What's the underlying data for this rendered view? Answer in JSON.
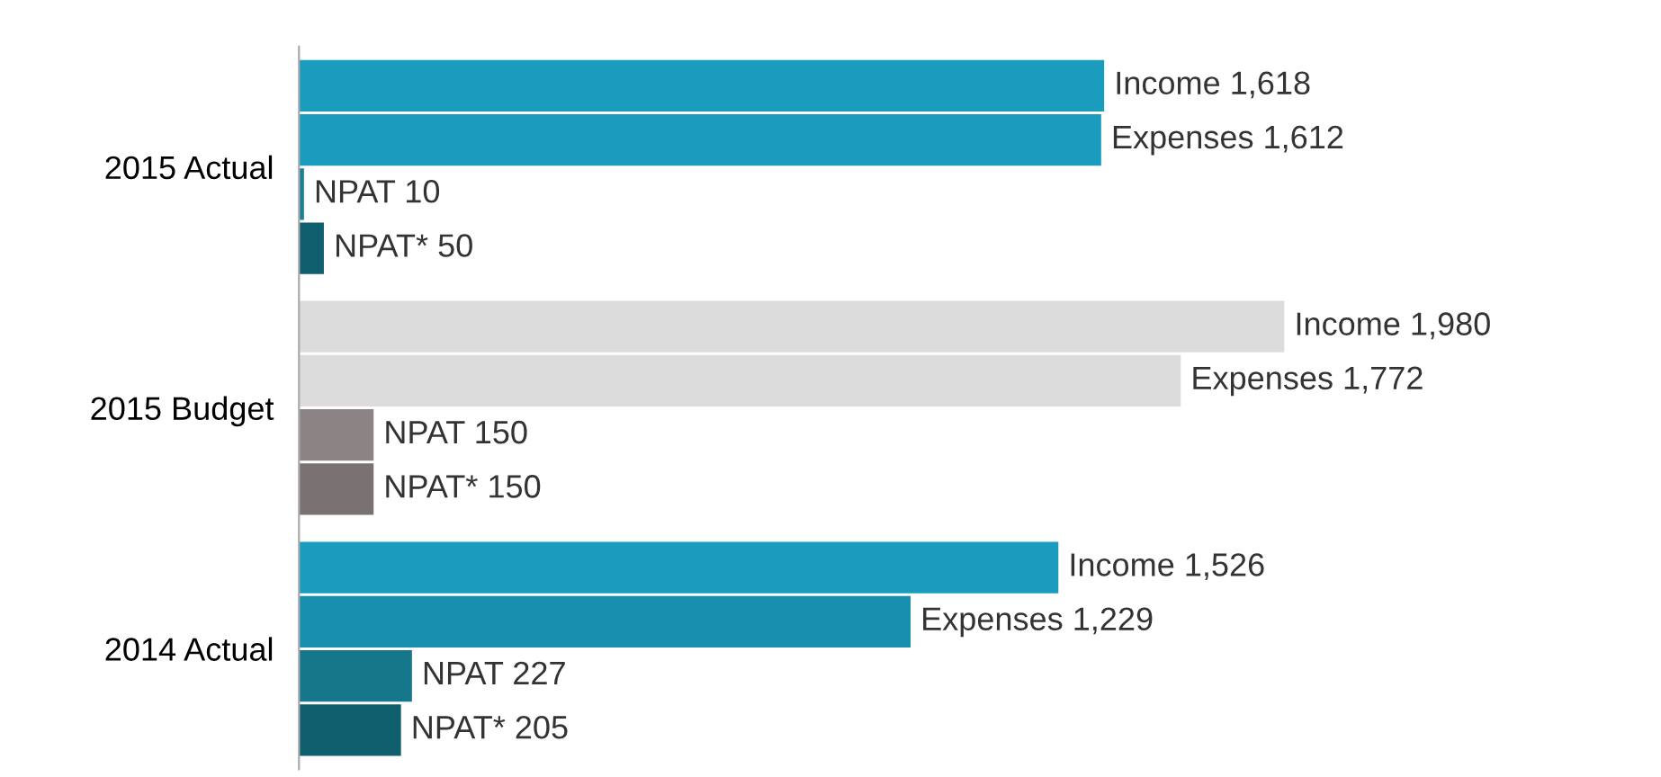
{
  "chart_data": {
    "type": "bar",
    "orientation": "horizontal",
    "categories": [
      "2015 Actual",
      "2015 Budget",
      "2014 Actual"
    ],
    "series": [
      {
        "colors": [
          "#1a9cbf",
          "#dcdcdc",
          "#1a9cbf"
        ],
        "values": [
          1618,
          1980,
          1526
        ],
        "value_labels": [
          "Income 1,618",
          "Income 1,980",
          "Income 1,526"
        ]
      },
      {
        "colors": [
          "#1a9cbf",
          "#dcdcdc",
          "#1790b0"
        ],
        "values": [
          1612,
          1772,
          1229
        ],
        "value_labels": [
          "Expenses 1,612",
          "Expenses 1,772",
          "Expenses 1,229"
        ]
      },
      {
        "colors": [
          "#1a7f92",
          "#8c8484",
          "#16768a"
        ],
        "values": [
          10,
          150,
          227
        ],
        "value_labels": [
          "NPAT 10",
          "NPAT 150",
          "NPAT 227"
        ]
      },
      {
        "colors": [
          "#0f5f6e",
          "#7a7272",
          "#0f5f6e"
        ],
        "values": [
          50,
          150,
          205
        ],
        "value_labels": [
          "NPAT* 50",
          "NPAT* 150",
          "NPAT* 205"
        ]
      }
    ],
    "grid": false,
    "legend": false
  }
}
